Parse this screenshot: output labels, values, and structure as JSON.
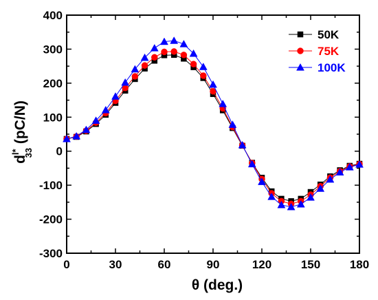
{
  "chart_data": {
    "type": "line",
    "xlabel": "θ (deg.)",
    "ylabel": {
      "main": "d",
      "superscript": "l*",
      "subscript": "33",
      "unit": " (pC/N)"
    },
    "xlim": [
      0,
      180
    ],
    "ylim": [
      -300,
      400
    ],
    "xticks": [
      0,
      30,
      60,
      90,
      120,
      150,
      180
    ],
    "yticks": [
      -300,
      -200,
      -100,
      0,
      100,
      200,
      300,
      400
    ],
    "grid": false,
    "legend_position": "top-right",
    "x": [
      0,
      6,
      12,
      18,
      24,
      30,
      36,
      42,
      48,
      54,
      60,
      66,
      72,
      78,
      84,
      90,
      96,
      102,
      108,
      114,
      120,
      126,
      132,
      138,
      144,
      150,
      156,
      162,
      168,
      174,
      180
    ],
    "series": [
      {
        "name": "50K",
        "color": "#000000",
        "marker": "square",
        "values": [
          36,
          42,
          58,
          80,
          107,
          142,
          178,
          212,
          243,
          266,
          282,
          283,
          272,
          247,
          215,
          168,
          120,
          68,
          16,
          -34,
          -78,
          -118,
          -140,
          -147,
          -140,
          -120,
          -98,
          -74,
          -56,
          -43,
          -37
        ]
      },
      {
        "name": "75K",
        "color": "#ff0000",
        "marker": "circle",
        "values": [
          36,
          43,
          60,
          84,
          112,
          148,
          186,
          220,
          252,
          276,
          292,
          293,
          283,
          256,
          222,
          176,
          126,
          71,
          17,
          -35,
          -82,
          -124,
          -147,
          -155,
          -147,
          -128,
          -103,
          -78,
          -59,
          -45,
          -38
        ]
      },
      {
        "name": "100K",
        "color": "#0000ff",
        "marker": "triangle",
        "values": [
          36,
          44,
          63,
          90,
          121,
          161,
          202,
          241,
          275,
          303,
          322,
          325,
          315,
          287,
          248,
          196,
          139,
          78,
          18,
          -38,
          -90,
          -134,
          -158,
          -164,
          -156,
          -136,
          -110,
          -83,
          -62,
          -47,
          -39
        ]
      }
    ]
  }
}
